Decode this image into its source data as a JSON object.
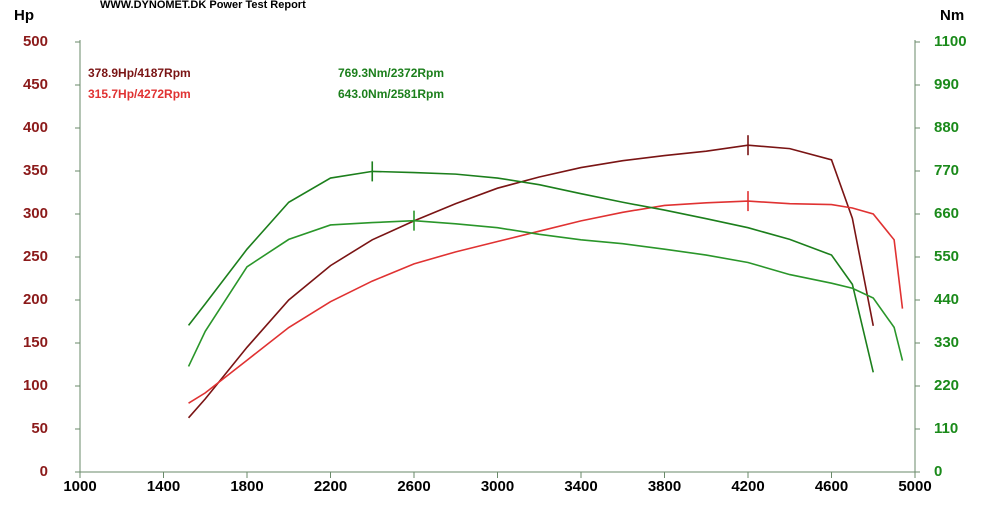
{
  "chart_data": {
    "type": "line",
    "title": "WWW.DYNOMET.DK  Power Test Report",
    "y_label": "Hp",
    "y2_label": "Nm",
    "x": [
      1520,
      1600,
      1800,
      2000,
      2200,
      2400,
      2600,
      2800,
      3000,
      3200,
      3400,
      3600,
      3800,
      4000,
      4200,
      4400,
      4600,
      4700,
      4800,
      4900,
      4940
    ],
    "series": [
      {
        "color": "#7a1414",
        "values": [
          63,
          85,
          145,
          200,
          240,
          270,
          292,
          312,
          330,
          343,
          354,
          362,
          368,
          373,
          380,
          376,
          363,
          295,
          170,
          null,
          null
        ]
      },
      {
        "color": "#e03232",
        "values": [
          80,
          92,
          130,
          168,
          198,
          222,
          242,
          256,
          268,
          280,
          292,
          302,
          310,
          313,
          315,
          312,
          311,
          307,
          300,
          270,
          190
        ]
      },
      {
        "color": "#1c7f1c",
        "axis": "y2",
        "values": [
          375,
          430,
          570,
          690,
          752,
          769,
          766,
          762,
          752,
          735,
          712,
          690,
          670,
          648,
          625,
          595,
          555,
          480,
          255,
          null,
          null
        ]
      },
      {
        "color": "#2a962a",
        "axis": "y2",
        "values": [
          270,
          360,
          525,
          595,
          632,
          638,
          643,
          635,
          625,
          608,
          594,
          584,
          570,
          555,
          536,
          505,
          483,
          470,
          445,
          370,
          285
        ]
      }
    ],
    "annotations": [
      {
        "text": "378.9Hp/4187Rpm",
        "color": "#7a1414"
      },
      {
        "text": "315.7Hp/4272Rpm",
        "color": "#e03232"
      },
      {
        "text": "769.3Nm/2372Rpm",
        "color": "#1c7f1c"
      },
      {
        "text": "643.0Nm/2581Rpm",
        "color": "#1c7f1c"
      }
    ],
    "xlim": [
      1000,
      5000
    ],
    "xticks": [
      1000,
      1400,
      1800,
      2200,
      2600,
      3000,
      3400,
      3800,
      4200,
      4600,
      5000
    ],
    "ylim": [
      0,
      500
    ],
    "yticks": [
      0,
      50,
      100,
      150,
      200,
      250,
      300,
      350,
      400,
      450,
      500
    ],
    "y2lim": [
      0,
      1100
    ],
    "y2ticks": [
      0,
      110,
      220,
      330,
      440,
      550,
      660,
      770,
      880,
      990,
      1100
    ],
    "y_color": "#8b1a1a",
    "y2_color": "#1a8a1a"
  }
}
